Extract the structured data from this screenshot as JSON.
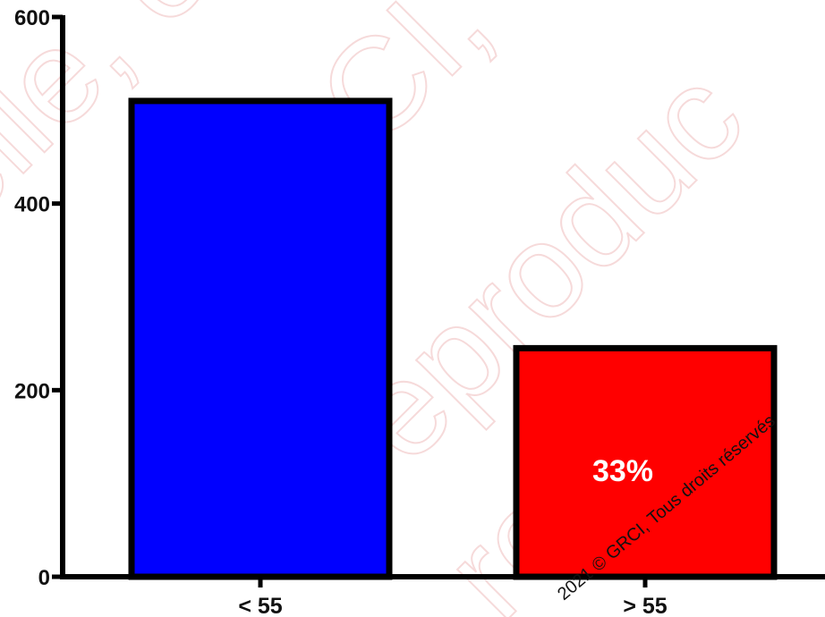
{
  "chart_data": {
    "type": "bar",
    "categories": [
      "< 55",
      "> 55"
    ],
    "values": [
      510,
      245
    ],
    "colors": [
      "#0000ff",
      "#ff0000"
    ],
    "ylim": [
      0,
      600
    ],
    "yticks": [
      0,
      200,
      400,
      600
    ],
    "title": "",
    "xlabel": "",
    "ylabel": "",
    "annotations": [
      {
        "category": "> 55",
        "text": "33%"
      }
    ],
    "grid": false
  },
  "watermark": {
    "copyright": "2021 © GRCI, Tous droits réservés",
    "background_words": [
      "elle, e",
      "GRCI, ",
      "reproduc",
      "repro"
    ]
  }
}
